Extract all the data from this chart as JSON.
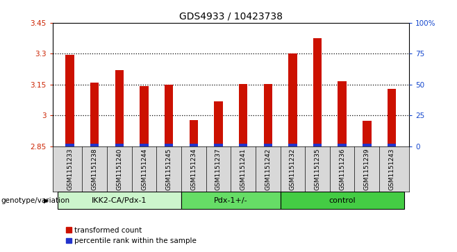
{
  "title": "GDS4933 / 10423738",
  "samples": [
    "GSM1151233",
    "GSM1151238",
    "GSM1151240",
    "GSM1151244",
    "GSM1151245",
    "GSM1151234",
    "GSM1151237",
    "GSM1151241",
    "GSM1151242",
    "GSM1151232",
    "GSM1151235",
    "GSM1151236",
    "GSM1151239",
    "GSM1151243"
  ],
  "red_values": [
    3.295,
    3.158,
    3.22,
    3.143,
    3.147,
    2.975,
    3.068,
    3.153,
    3.152,
    3.302,
    3.375,
    3.165,
    2.972,
    3.128
  ],
  "blue_values": [
    0.012,
    0.012,
    0.012,
    0.012,
    0.012,
    0.012,
    0.012,
    0.012,
    0.012,
    0.012,
    0.012,
    0.012,
    0.012,
    0.012
  ],
  "ymin": 2.85,
  "ymax": 3.45,
  "yticks": [
    2.85,
    3.0,
    3.15,
    3.3,
    3.45
  ],
  "ytick_labels": [
    "2.85",
    "3",
    "3.15",
    "3.3",
    "3.45"
  ],
  "right_yticks": [
    0,
    25,
    50,
    75,
    100
  ],
  "right_ytick_labels": [
    "0",
    "25",
    "50",
    "75",
    "100%"
  ],
  "groups": [
    {
      "label": "IKK2-CA/Pdx-1",
      "start": 0,
      "end": 5,
      "color": "#ccf5cc"
    },
    {
      "label": "Pdx-1+/-",
      "start": 5,
      "end": 9,
      "color": "#66dd66"
    },
    {
      "label": "control",
      "start": 9,
      "end": 14,
      "color": "#44cc44"
    }
  ],
  "group_label_prefix": "genotype/variation",
  "legend_red": "transformed count",
  "legend_blue": "percentile rank within the sample",
  "bar_width": 0.35,
  "bar_bottom": 2.85,
  "red_color": "#cc1100",
  "blue_color": "#2233cc",
  "tick_color_left": "#cc2200",
  "tick_color_right": "#1144cc",
  "bg_color": "#ffffff",
  "xtick_bg": "#d8d8d8"
}
